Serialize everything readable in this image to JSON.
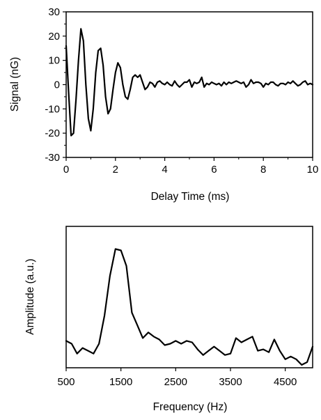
{
  "chart_data": [
    {
      "type": "line",
      "xlabel": "Delay Time (ms)",
      "ylabel": "Signal (nG)",
      "xlim": [
        0,
        10
      ],
      "ylim": [
        -30,
        30
      ],
      "xticks": [
        "0",
        "2",
        "4",
        "6",
        "8",
        "10"
      ],
      "yticks": [
        "-30",
        "-20",
        "-10",
        "0",
        "10",
        "20",
        "30"
      ],
      "grid": false,
      "legend": "none",
      "series": [
        {
          "x": [
            0.0,
            0.1,
            0.2,
            0.3,
            0.4,
            0.5,
            0.6,
            0.7,
            0.8,
            0.9,
            1.0,
            1.1,
            1.2,
            1.3,
            1.4,
            1.5,
            1.6,
            1.7,
            1.8,
            1.9,
            2.0,
            2.1,
            2.2,
            2.3,
            2.4,
            2.5,
            2.6,
            2.7,
            2.8,
            2.9,
            3.0,
            3.1,
            3.2,
            3.3,
            3.4,
            3.5,
            3.6,
            3.7,
            3.8,
            3.9,
            4.0,
            4.1,
            4.2,
            4.3,
            4.4,
            4.5,
            4.6,
            4.7,
            4.8,
            4.9,
            5.0,
            5.1,
            5.2,
            5.3,
            5.4,
            5.5,
            5.6,
            5.7,
            5.8,
            5.9,
            6.0,
            6.1,
            6.2,
            6.3,
            6.4,
            6.5,
            6.6,
            6.7,
            6.8,
            6.9,
            7.0,
            7.1,
            7.2,
            7.3,
            7.4,
            7.5,
            7.6,
            7.7,
            7.8,
            7.9,
            8.0,
            8.1,
            8.2,
            8.3,
            8.4,
            8.5,
            8.6,
            8.7,
            8.8,
            8.9,
            9.0,
            9.1,
            9.2,
            9.3,
            9.4,
            9.5,
            9.6,
            9.7,
            9.8,
            9.9,
            10.0
          ],
          "y": [
            16,
            -3,
            -21,
            -20,
            -6,
            10,
            23,
            18,
            0,
            -14,
            -19,
            -10,
            5,
            14,
            15,
            8,
            -5,
            -12,
            -10,
            -2,
            5,
            9,
            7,
            0,
            -5,
            -6,
            -2,
            3,
            4,
            3,
            4,
            1,
            -2,
            -1,
            1,
            0.5,
            -1,
            1,
            1.5,
            0.5,
            0,
            1,
            0,
            -0.5,
            1.5,
            0,
            -1,
            0,
            1,
            1,
            2,
            -1,
            1,
            0.5,
            1,
            3,
            -1,
            0.5,
            0,
            1,
            0.5,
            0,
            0.5,
            -0.5,
            1,
            0,
            1,
            0.5,
            1,
            1.5,
            1,
            0.5,
            1,
            -1,
            0,
            2,
            0.5,
            1,
            1,
            0.5,
            -1,
            0.5,
            0,
            1,
            1,
            0,
            -0.5,
            0.5,
            0.5,
            0,
            1,
            0.5,
            1.5,
            0.5,
            -0.5,
            0,
            1,
            1.5,
            0,
            0.5,
            0
          ]
        }
      ]
    },
    {
      "type": "line",
      "xlabel": "Frequency (Hz)",
      "ylabel": "Amplitude (a.u.)",
      "xlim": [
        500,
        5000
      ],
      "ylim": [
        0,
        100
      ],
      "xticks": [
        "500",
        "1500",
        "2500",
        "3500",
        "4500"
      ],
      "yticks": [],
      "grid": false,
      "legend": "none",
      "series": [
        {
          "x": [
            500,
            600,
            700,
            800,
            900,
            1000,
            1100,
            1200,
            1300,
            1400,
            1500,
            1600,
            1700,
            1800,
            1900,
            2000,
            2100,
            2200,
            2300,
            2400,
            2500,
            2600,
            2700,
            2800,
            2900,
            3000,
            3100,
            3200,
            3300,
            3400,
            3500,
            3600,
            3700,
            3800,
            3900,
            4000,
            4100,
            4200,
            4300,
            4400,
            4500,
            4600,
            4700,
            4800,
            4900,
            5000
          ],
          "y": [
            19,
            17,
            10,
            14,
            12,
            10,
            17,
            37,
            65,
            84,
            83,
            72,
            39,
            30,
            21,
            25,
            22,
            20,
            16,
            17,
            19,
            17,
            19,
            18,
            13,
            9,
            12,
            15,
            12,
            9,
            10,
            21,
            18,
            20,
            22,
            12,
            13,
            11,
            20,
            12,
            6,
            8,
            6,
            2,
            4,
            15
          ]
        }
      ]
    }
  ]
}
